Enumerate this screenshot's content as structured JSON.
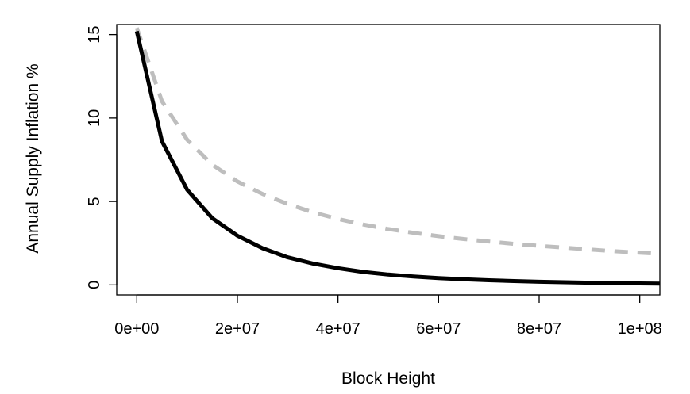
{
  "chart_data": {
    "type": "line",
    "title": "",
    "xlabel": "Block Height",
    "ylabel": "Annual Supply Inflation %",
    "xlim": [
      -4000000,
      104000000
    ],
    "ylim": [
      -0.6,
      15.6
    ],
    "x_ticks": [
      0,
      20000000,
      40000000,
      60000000,
      80000000,
      100000000
    ],
    "x_tick_labels": [
      "0e+00",
      "2e+07",
      "4e+07",
      "6e+07",
      "8e+07",
      "1e+08"
    ],
    "y_ticks": [
      0,
      5,
      10,
      15
    ],
    "y_tick_labels": [
      "0",
      "5",
      "10",
      "15"
    ],
    "grid": false,
    "legend": "none",
    "series": [
      {
        "color": "#000000",
        "style": "solid",
        "x": [
          0,
          5000000,
          10000000,
          15000000,
          20000000,
          25000000,
          30000000,
          35000000,
          40000000,
          45000000,
          50000000,
          55000000,
          60000000,
          65000000,
          70000000,
          75000000,
          80000000,
          85000000,
          90000000,
          95000000,
          100000000,
          104000000
        ],
        "values": [
          15.2,
          8.6,
          5.7,
          4.0,
          2.95,
          2.2,
          1.65,
          1.28,
          1.0,
          0.78,
          0.62,
          0.5,
          0.41,
          0.34,
          0.28,
          0.23,
          0.19,
          0.16,
          0.13,
          0.11,
          0.09,
          0.08
        ]
      },
      {
        "color": "#bebebe",
        "style": "dashed",
        "x": [
          0,
          5000000,
          10000000,
          15000000,
          20000000,
          25000000,
          30000000,
          35000000,
          40000000,
          45000000,
          50000000,
          55000000,
          60000000,
          65000000,
          70000000,
          75000000,
          80000000,
          85000000,
          90000000,
          95000000,
          100000000,
          104000000
        ],
        "values": [
          15.4,
          11.0,
          8.7,
          7.2,
          6.2,
          5.45,
          4.85,
          4.35,
          3.95,
          3.62,
          3.35,
          3.12,
          2.92,
          2.75,
          2.6,
          2.46,
          2.34,
          2.23,
          2.12,
          2.02,
          1.93,
          1.86
        ]
      }
    ]
  }
}
